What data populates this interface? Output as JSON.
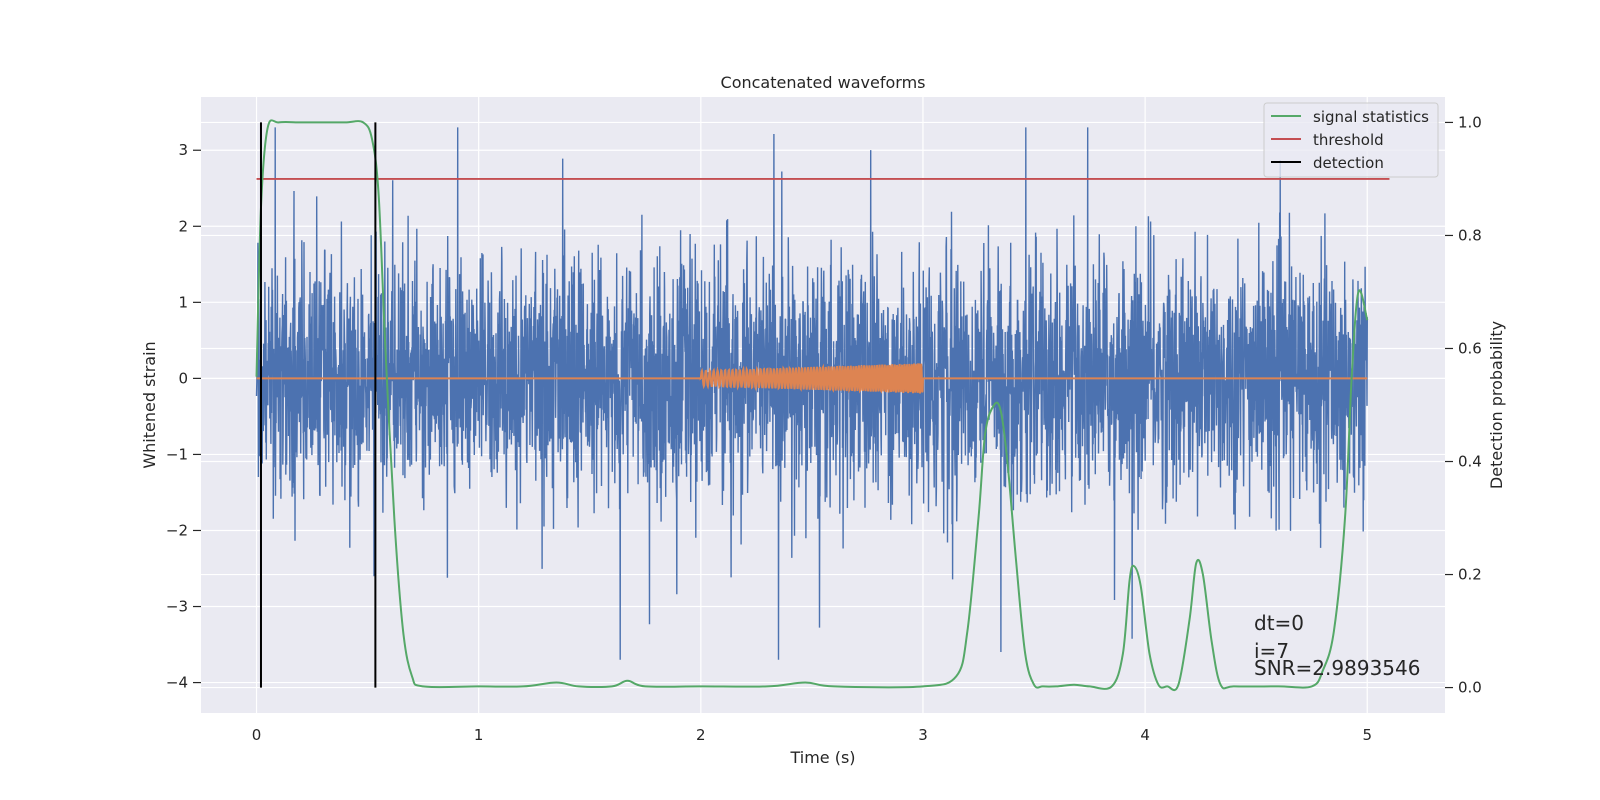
{
  "chart_data": {
    "type": "line",
    "title": "Concatenated waveforms",
    "xlabel": "Time (s)",
    "ylabel": "Whitened strain",
    "y2label": "Detection probability",
    "xlim": [
      -0.25,
      5.35
    ],
    "ylim": [
      -4.4,
      3.7
    ],
    "y2lim": [
      -0.045,
      1.045
    ],
    "x_ticks": [
      0,
      1,
      2,
      3,
      4,
      5
    ],
    "y_ticks": [
      -4,
      -3,
      -2,
      -1,
      0,
      1,
      2,
      3
    ],
    "y2_ticks": [
      0.0,
      0.2,
      0.4,
      0.6,
      0.8,
      1.0
    ],
    "x_tick_labels": [
      "0",
      "1",
      "2",
      "3",
      "4",
      "5"
    ],
    "y_tick_labels": [
      "−4",
      "−3",
      "−2",
      "−1",
      "0",
      "1",
      "2",
      "3"
    ],
    "y2_tick_labels": [
      "0.0",
      "0.2",
      "0.4",
      "0.6",
      "0.8",
      "1.0"
    ],
    "grid": true,
    "legend_position": "top-right",
    "legend": [
      "signal statistics",
      "threshold",
      "detection"
    ],
    "colors": {
      "strain": "#4c72b0",
      "waveform": "#dd8452",
      "signal_statistics": "#55a868",
      "threshold": "#c44e52",
      "detection": "#000000",
      "background": "#eaeaf2",
      "grid": "#ffffff"
    },
    "series": [
      {
        "name": "signal statistics",
        "axis": "right",
        "x": [
          0.0,
          0.02,
          0.05,
          0.1,
          0.2,
          0.3,
          0.4,
          0.48,
          0.52,
          0.55,
          0.58,
          0.62,
          0.66,
          0.7,
          0.75,
          1.0,
          1.2,
          1.35,
          1.45,
          1.6,
          1.67,
          1.75,
          2.0,
          2.3,
          2.47,
          2.6,
          3.0,
          3.15,
          3.2,
          3.25,
          3.28,
          3.32,
          3.35,
          3.38,
          3.42,
          3.46,
          3.5,
          3.54,
          3.6,
          3.68,
          3.75,
          3.85,
          3.9,
          3.93,
          3.95,
          3.98,
          4.02,
          4.06,
          4.1,
          4.15,
          4.2,
          4.23,
          4.26,
          4.3,
          4.34,
          4.4,
          4.6,
          4.75,
          4.8,
          4.85,
          4.9,
          4.93,
          4.96,
          5.0
        ],
        "y": [
          0.55,
          0.85,
          0.99,
          1.0,
          1.0,
          1.0,
          1.0,
          1.0,
          0.97,
          0.87,
          0.6,
          0.3,
          0.1,
          0.02,
          0.002,
          0.002,
          0.002,
          0.009,
          0.002,
          0.002,
          0.012,
          0.002,
          0.002,
          0.002,
          0.009,
          0.002,
          0.002,
          0.02,
          0.1,
          0.3,
          0.45,
          0.5,
          0.49,
          0.4,
          0.22,
          0.06,
          0.005,
          0.002,
          0.002,
          0.005,
          0.002,
          0.002,
          0.06,
          0.19,
          0.215,
          0.18,
          0.06,
          0.005,
          0.002,
          0.005,
          0.12,
          0.22,
          0.2,
          0.08,
          0.005,
          0.002,
          0.002,
          0.002,
          0.03,
          0.1,
          0.3,
          0.55,
          0.7,
          0.65
        ]
      },
      {
        "name": "threshold",
        "axis": "right",
        "x": [
          0.0,
          5.1
        ],
        "y": [
          0.9,
          0.9
        ]
      },
      {
        "name": "detection",
        "axis": "right",
        "type": "vlines",
        "x": [
          0.02,
          0.535
        ],
        "y_range": [
          0.0,
          1.0
        ]
      }
    ],
    "noise": {
      "axis": "left",
      "x_range": [
        0.0,
        5.0
      ],
      "samples": 4096,
      "typical_range": [
        -2.0,
        2.0
      ],
      "extremes": [
        -3.7,
        3.3
      ]
    },
    "waveform": {
      "axis": "left",
      "x": [
        0.0,
        2.0,
        2.0,
        3.0,
        3.0,
        5.0
      ],
      "envelope": [
        0.0,
        0.0,
        0.1,
        0.2,
        0.0,
        0.0
      ]
    },
    "annotations": [
      "dt=0",
      "i=7",
      "SNR=2.9893546"
    ]
  }
}
